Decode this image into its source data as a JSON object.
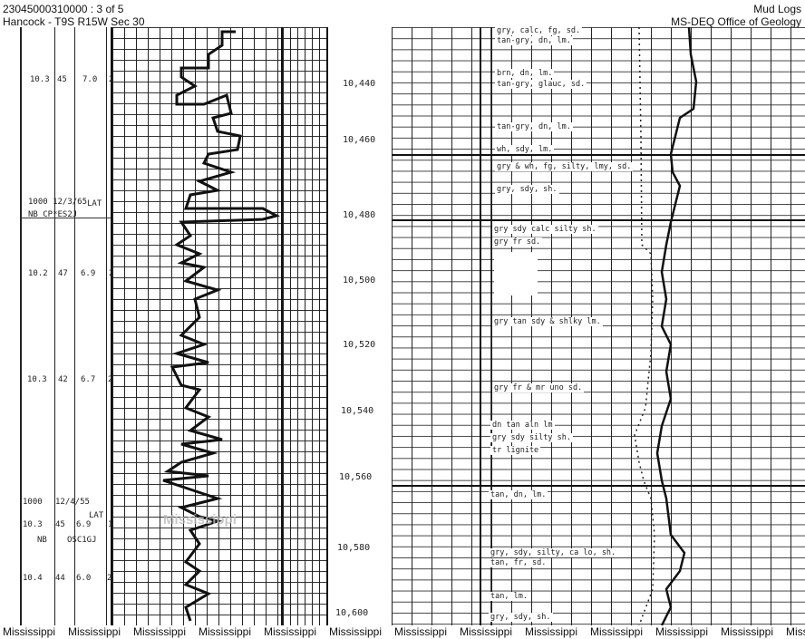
{
  "header": {
    "doc_id": "23045000310000 : 3 of 5",
    "location": "Hancock - T9S R15W Sec 30",
    "category": "Mud Logs",
    "source": "MS-DEQ Office of Geology"
  },
  "mud_properties": [
    {
      "weight": "10.3",
      "viscosity": "45",
      "ph": "7.0",
      "code": "2"
    },
    {
      "note1": "1000   12/3/65",
      "note2": "NB  CP*ES2J",
      "tag": "LAT"
    },
    {
      "weight": "10.2",
      "viscosity": "47",
      "ph": "6.9",
      "code": "2"
    },
    {
      "weight": "10.3",
      "viscosity": "42",
      "ph": "6.7",
      "code": "2"
    },
    {
      "note1": "1000",
      "note2": "12/4/55",
      "tag": "LAT"
    },
    {
      "weight": "10.3",
      "viscosity": "45",
      "ph": "6.9",
      "code": "1"
    },
    {
      "note1": "NB",
      "note2": "OSC1GJ"
    },
    {
      "weight": "10.4",
      "viscosity": "44",
      "ph": "6.0",
      "code": "2"
    }
  ],
  "depths": [
    "10,440",
    "10,460",
    "10,480",
    "10,500",
    "10,520",
    "10,540",
    "10,560",
    "10,580",
    "10,600"
  ],
  "lithology": [
    "gry, calc, fg, sd.",
    "tan-gry, dn, lm.",
    "brn, dn, lm.",
    "tan-gry, glauc, sd.",
    "tan-gry, dn, lm.",
    "wh, sdy, lm.",
    "gry & wh, fg, silty, lmy, sd.",
    "gry, sdy, sh.",
    "gry sdy calc silty sh.",
    "gry fr sd.",
    "gry tan sdy & shlky lm.",
    "gry fr & mr uno sd.",
    "dn tan aln lm",
    "gry sdy silty sh.",
    "tr lignite",
    "tan, dn, lm.",
    "gry, sdy, silty, ca lo, sh.",
    "tan, fr, sd.",
    "tan, lm.",
    "gry, sdy, sh."
  ],
  "watermark": "Mississippi",
  "footer": [
    "Mississippi",
    "Mississippi",
    "Mississippi",
    "Mississippi",
    "Mississippi",
    "Mississippi",
    "Mississippi",
    "Mississippi",
    "Mississippi",
    "Mississippi",
    "Mississippi",
    "Mississippi",
    "Mississippi"
  ]
}
